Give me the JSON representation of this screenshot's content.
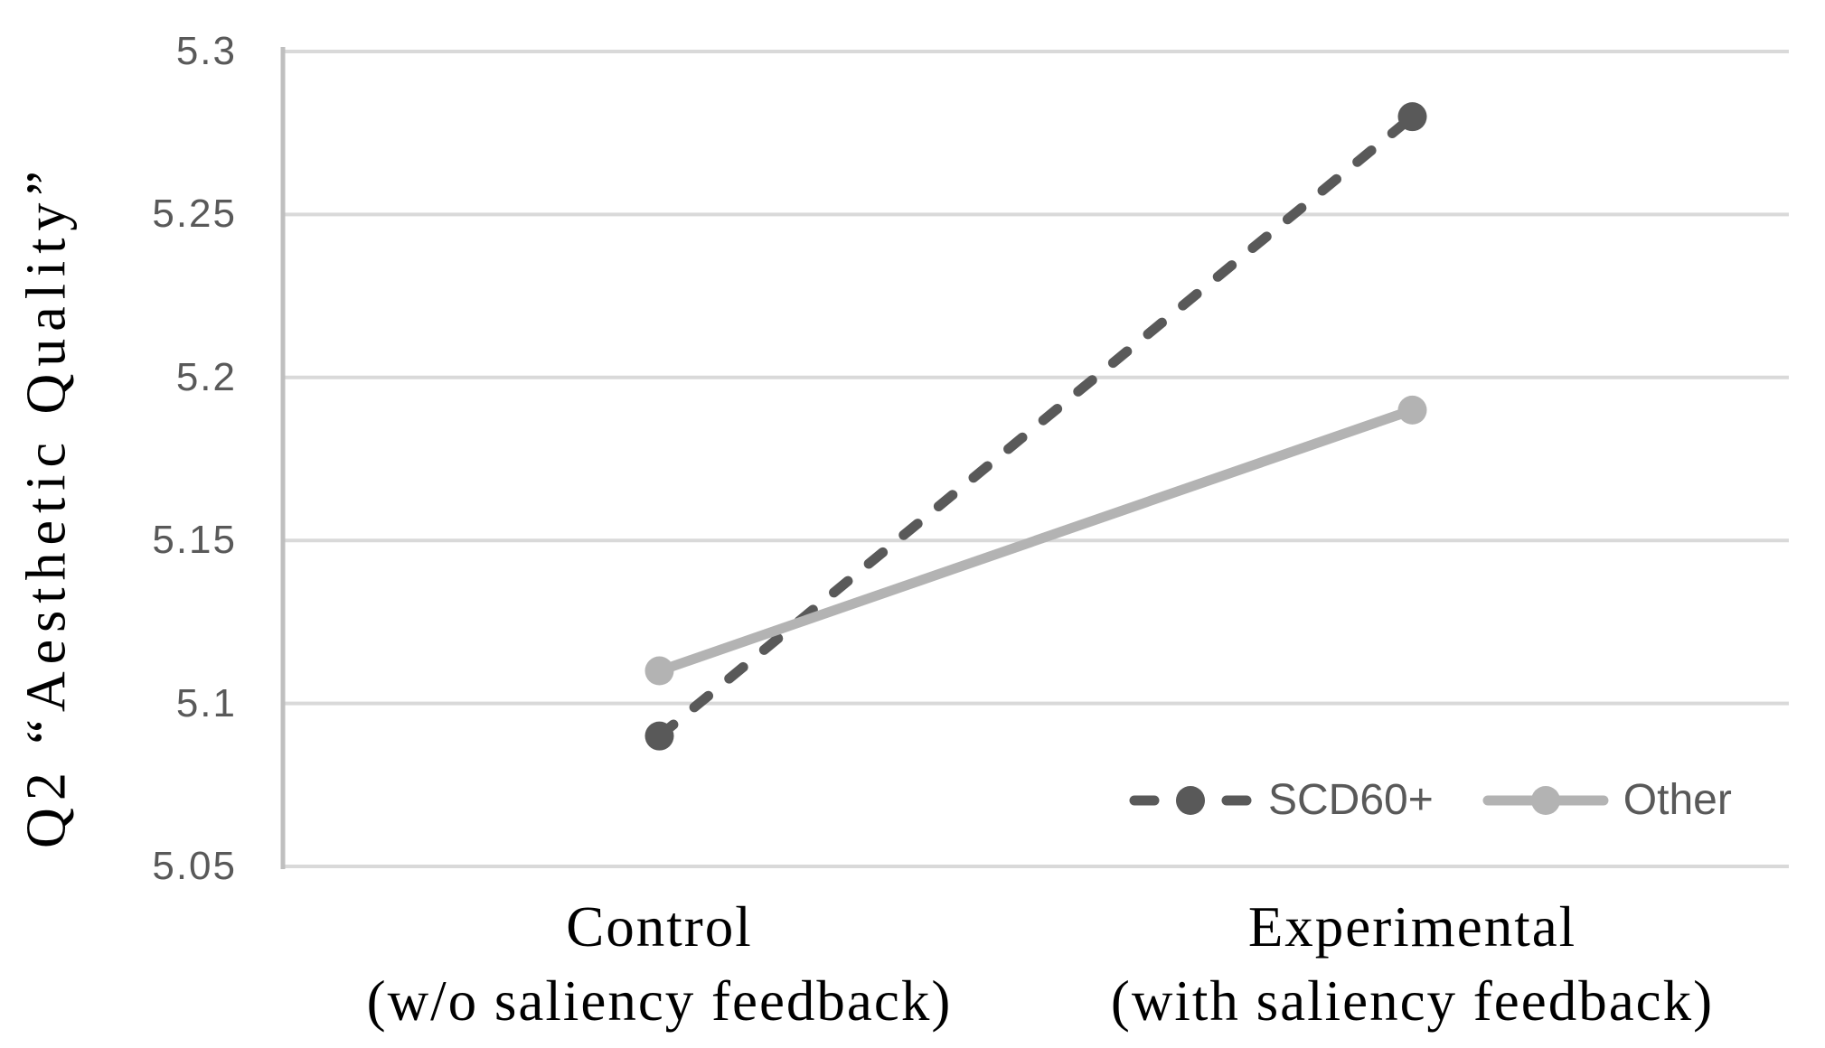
{
  "chart_data": {
    "type": "line",
    "title": "",
    "ylabel": "Q2 “Aesthetic Quality”",
    "xlabel": "",
    "categories": [
      {
        "line1": "Control",
        "line2": "(w/o saliency feedback)"
      },
      {
        "line1": "Experimental",
        "line2": "(with saliency feedback)"
      }
    ],
    "series": [
      {
        "name": "SCD60+",
        "values": [
          5.09,
          5.28
        ],
        "color": "#595959",
        "line_style": "dashed",
        "marker": "circle"
      },
      {
        "name": "Other",
        "values": [
          5.11,
          5.19
        ],
        "color": "#b3b3b3",
        "line_style": "solid",
        "marker": "circle"
      }
    ],
    "ylim": [
      5.05,
      5.3
    ],
    "yticks": [
      {
        "value": 5.3,
        "label": "5.3"
      },
      {
        "value": 5.25,
        "label": "5.25"
      },
      {
        "value": 5.2,
        "label": "5.2"
      },
      {
        "value": 5.15,
        "label": "5.15"
      },
      {
        "value": 5.1,
        "label": "5.1"
      },
      {
        "value": 5.05,
        "label": "5.05"
      }
    ],
    "grid": true,
    "legend_position": "inside-bottom-right",
    "colors": {
      "gridline": "#d9d9d9",
      "axis_line": "#bfbfbf",
      "tick_text": "#595959",
      "label_text": "#000000",
      "background": "#ffffff"
    }
  }
}
